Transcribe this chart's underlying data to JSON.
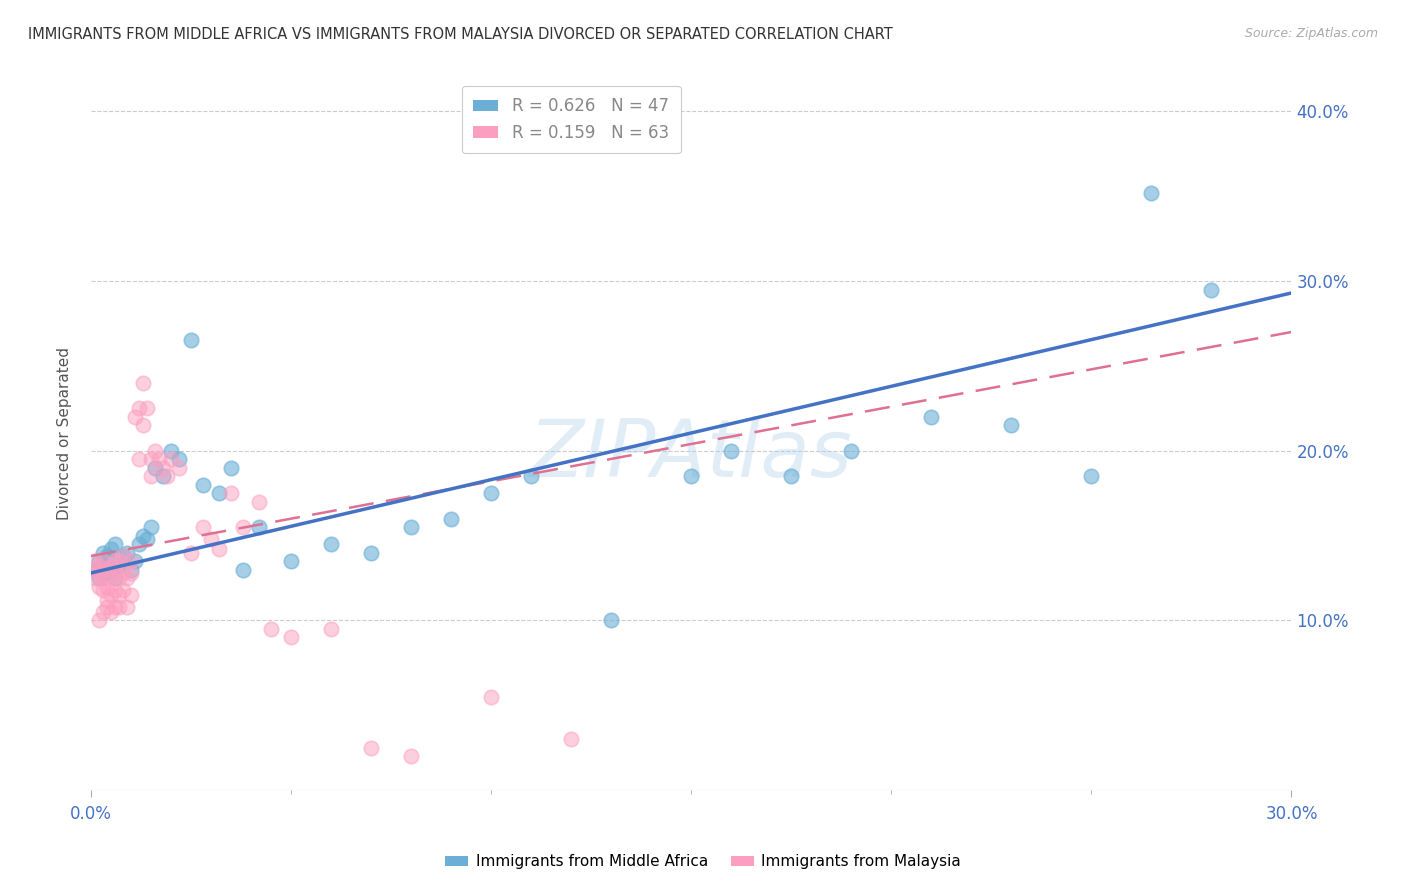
{
  "title": "IMMIGRANTS FROM MIDDLE AFRICA VS IMMIGRANTS FROM MALAYSIA DIVORCED OR SEPARATED CORRELATION CHART",
  "source": "Source: ZipAtlas.com",
  "ylabel": "Divorced or Separated",
  "legend_label_blue": "Immigrants from Middle Africa",
  "legend_label_pink": "Immigrants from Malaysia",
  "R_blue": 0.626,
  "N_blue": 47,
  "R_pink": 0.159,
  "N_pink": 63,
  "watermark": "ZIPAtlas",
  "xlim": [
    0.0,
    0.3
  ],
  "ylim": [
    0.0,
    0.42
  ],
  "xticks_show": [
    0.0,
    0.3
  ],
  "yticks": [
    0.1,
    0.2,
    0.3,
    0.4
  ],
  "yticks_grid": [
    0.1,
    0.2,
    0.3,
    0.4
  ],
  "color_blue": "#6baed6",
  "color_pink": "#fc9ebf",
  "color_blue_line": "#4472c4",
  "color_pink_line": "#e07090",
  "color_axis_labels": "#4472c4",
  "background_color": "#ffffff",
  "blue_scatter_x": [
    0.001,
    0.002,
    0.002,
    0.003,
    0.003,
    0.004,
    0.004,
    0.005,
    0.005,
    0.006,
    0.006,
    0.007,
    0.008,
    0.009,
    0.01,
    0.011,
    0.012,
    0.013,
    0.014,
    0.015,
    0.016,
    0.018,
    0.02,
    0.022,
    0.025,
    0.028,
    0.032,
    0.035,
    0.038,
    0.042,
    0.05,
    0.06,
    0.07,
    0.08,
    0.09,
    0.1,
    0.11,
    0.13,
    0.15,
    0.16,
    0.175,
    0.19,
    0.21,
    0.23,
    0.25,
    0.265,
    0.28
  ],
  "blue_scatter_y": [
    0.13,
    0.135,
    0.125,
    0.128,
    0.14,
    0.132,
    0.138,
    0.13,
    0.142,
    0.125,
    0.145,
    0.133,
    0.138,
    0.14,
    0.13,
    0.135,
    0.145,
    0.15,
    0.148,
    0.155,
    0.19,
    0.185,
    0.2,
    0.195,
    0.265,
    0.18,
    0.175,
    0.19,
    0.13,
    0.155,
    0.135,
    0.145,
    0.14,
    0.155,
    0.16,
    0.175,
    0.185,
    0.1,
    0.185,
    0.2,
    0.185,
    0.2,
    0.22,
    0.215,
    0.185,
    0.352,
    0.295
  ],
  "pink_scatter_x": [
    0.001,
    0.001,
    0.001,
    0.002,
    0.002,
    0.002,
    0.002,
    0.003,
    0.003,
    0.003,
    0.003,
    0.004,
    0.004,
    0.004,
    0.004,
    0.005,
    0.005,
    0.005,
    0.005,
    0.006,
    0.006,
    0.006,
    0.006,
    0.007,
    0.007,
    0.007,
    0.007,
    0.008,
    0.008,
    0.008,
    0.009,
    0.009,
    0.01,
    0.01,
    0.01,
    0.011,
    0.012,
    0.012,
    0.013,
    0.013,
    0.014,
    0.015,
    0.015,
    0.016,
    0.017,
    0.018,
    0.019,
    0.02,
    0.022,
    0.025,
    0.028,
    0.03,
    0.032,
    0.035,
    0.038,
    0.042,
    0.045,
    0.05,
    0.06,
    0.07,
    0.08,
    0.1,
    0.12
  ],
  "pink_scatter_y": [
    0.125,
    0.13,
    0.135,
    0.12,
    0.128,
    0.132,
    0.1,
    0.118,
    0.125,
    0.135,
    0.105,
    0.112,
    0.12,
    0.13,
    0.108,
    0.115,
    0.125,
    0.132,
    0.105,
    0.118,
    0.128,
    0.135,
    0.108,
    0.115,
    0.125,
    0.135,
    0.108,
    0.118,
    0.128,
    0.138,
    0.108,
    0.125,
    0.115,
    0.128,
    0.135,
    0.22,
    0.225,
    0.195,
    0.24,
    0.215,
    0.225,
    0.195,
    0.185,
    0.2,
    0.195,
    0.19,
    0.185,
    0.195,
    0.19,
    0.14,
    0.155,
    0.148,
    0.142,
    0.175,
    0.155,
    0.17,
    0.095,
    0.09,
    0.095,
    0.025,
    0.02,
    0.055,
    0.03
  ],
  "trend_blue_x0": 0.0,
  "trend_blue_y0": 0.128,
  "trend_blue_x1": 0.3,
  "trend_blue_y1": 0.293,
  "trend_pink_x0": 0.0,
  "trend_pink_y0": 0.138,
  "trend_pink_x1": 0.3,
  "trend_pink_y1": 0.27
}
